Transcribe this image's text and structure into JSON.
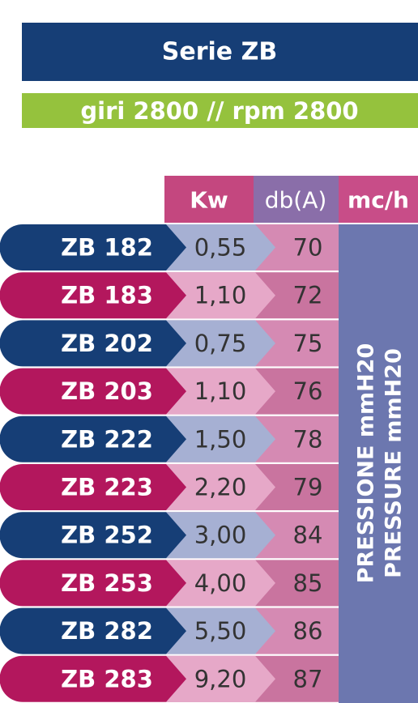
{
  "header": {
    "title": "Serie ZB",
    "subtitle": "giri 2800 // rpm 2800"
  },
  "table": {
    "columns": [
      "Kw",
      "db(A)",
      "mc/h"
    ],
    "rows": [
      [
        "ZB 182",
        "0,55",
        70
      ],
      [
        "ZB 183",
        "1,10",
        72
      ],
      [
        "ZB 202",
        "0,75",
        75
      ],
      [
        "ZB 203",
        "1,10",
        76
      ],
      [
        "ZB 222",
        "1,50",
        78
      ],
      [
        "ZB 223",
        "2,20",
        79
      ],
      [
        "ZB 252",
        "3,00",
        84
      ],
      [
        "ZB 253",
        "4,00",
        85
      ],
      [
        "ZB 282",
        "5,50",
        86
      ],
      [
        "ZB 283",
        "9,20",
        87
      ]
    ],
    "side_labels": [
      "PRESSIONE mmH20",
      "PRESSURE mmH20"
    ]
  }
}
